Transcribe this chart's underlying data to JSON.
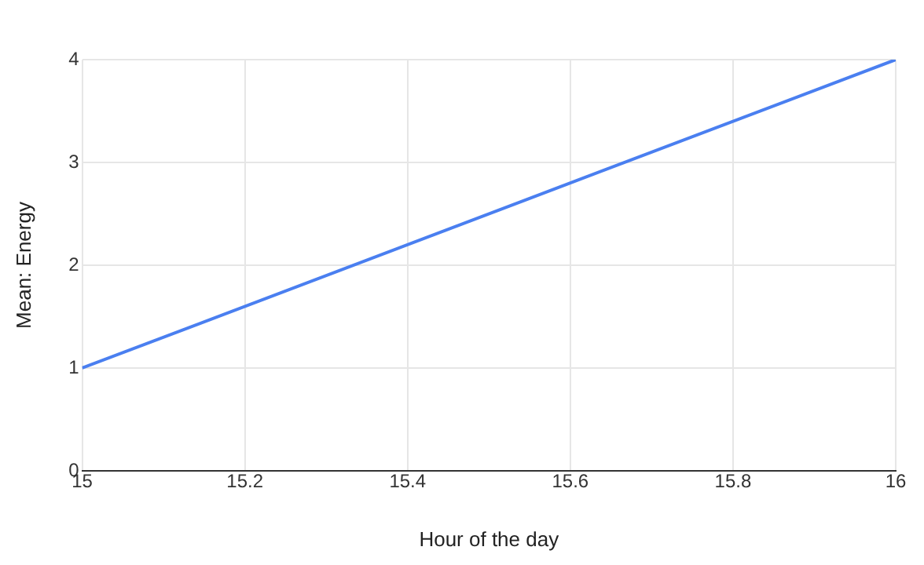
{
  "chart_data": {
    "type": "line",
    "xlabel": "Hour of the day",
    "ylabel": "Mean: Energy",
    "x": [
      15,
      16
    ],
    "series": [
      {
        "color": "#4a7ff0",
        "values": [
          1,
          4
        ]
      }
    ],
    "xlim": [
      15,
      16
    ],
    "xticks": [
      15,
      15.2,
      15.4,
      15.6,
      15.8,
      16
    ],
    "ylim": [
      0,
      4
    ],
    "yticks": [
      0,
      1,
      2,
      3,
      4
    ],
    "grid": true,
    "legend": false,
    "marker": "none",
    "line_style": "solid"
  }
}
